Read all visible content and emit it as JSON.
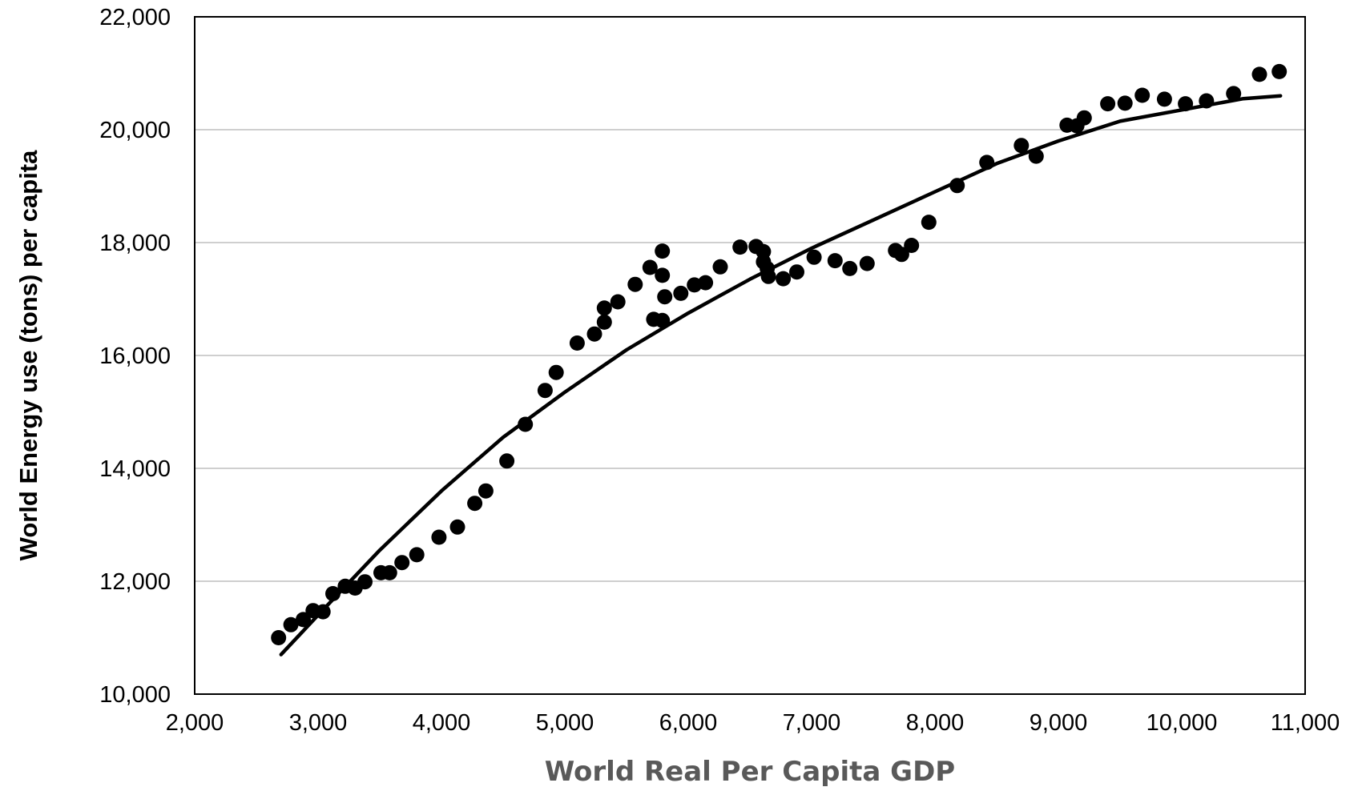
{
  "chart_data": {
    "type": "scatter",
    "title": "",
    "xlabel": "World Real Per Capita GDP",
    "ylabel": "World Energy use (tons) per capita",
    "xlim": [
      2000,
      11000
    ],
    "ylim": [
      10000,
      22000
    ],
    "x_ticks": [
      "2,000",
      "3,000",
      "4,000",
      "5,000",
      "6,000",
      "7,000",
      "8,000",
      "9,000",
      "10,000",
      "11,000"
    ],
    "y_ticks": [
      "10,000",
      "12,000",
      "14,000",
      "16,000",
      "18,000",
      "20,000",
      "22,000"
    ],
    "grid": "horizontal",
    "legend": "none",
    "colors": {
      "points": "#000000",
      "trend": "#000000",
      "grid": "#bfbfbf",
      "x_title": "#595959"
    },
    "series": [
      {
        "kind": "scatter",
        "points": [
          [
            2680,
            11000
          ],
          [
            2780,
            11230
          ],
          [
            2880,
            11320
          ],
          [
            2960,
            11480
          ],
          [
            3040,
            11460
          ],
          [
            3120,
            11780
          ],
          [
            3220,
            11910
          ],
          [
            3300,
            11880
          ],
          [
            3380,
            11990
          ],
          [
            3510,
            12150
          ],
          [
            3580,
            12150
          ],
          [
            3680,
            12330
          ],
          [
            3800,
            12470
          ],
          [
            3980,
            12780
          ],
          [
            4130,
            12960
          ],
          [
            4270,
            13380
          ],
          [
            4360,
            13600
          ],
          [
            4530,
            14130
          ],
          [
            4680,
            14780
          ],
          [
            4840,
            15380
          ],
          [
            4930,
            15700
          ],
          [
            5100,
            16220
          ],
          [
            5240,
            16380
          ],
          [
            5320,
            16590
          ],
          [
            5320,
            16840
          ],
          [
            5430,
            16950
          ],
          [
            5570,
            17260
          ],
          [
            5690,
            17560
          ],
          [
            5720,
            16640
          ],
          [
            5790,
            16620
          ],
          [
            5790,
            17420
          ],
          [
            5790,
            17850
          ],
          [
            5810,
            17040
          ],
          [
            5940,
            17100
          ],
          [
            6050,
            17250
          ],
          [
            6140,
            17290
          ],
          [
            6260,
            17570
          ],
          [
            6420,
            17920
          ],
          [
            6550,
            17930
          ],
          [
            6610,
            17840
          ],
          [
            6610,
            17660
          ],
          [
            6640,
            17540
          ],
          [
            6650,
            17400
          ],
          [
            6770,
            17360
          ],
          [
            6880,
            17480
          ],
          [
            7020,
            17740
          ],
          [
            7190,
            17680
          ],
          [
            7310,
            17540
          ],
          [
            7450,
            17630
          ],
          [
            7680,
            17860
          ],
          [
            7730,
            17790
          ],
          [
            7810,
            17950
          ],
          [
            7950,
            18360
          ],
          [
            8180,
            19010
          ],
          [
            8420,
            19420
          ],
          [
            8700,
            19720
          ],
          [
            8820,
            19530
          ],
          [
            9070,
            20080
          ],
          [
            9150,
            20070
          ],
          [
            9210,
            20210
          ],
          [
            9400,
            20460
          ],
          [
            9540,
            20470
          ],
          [
            9680,
            20610
          ],
          [
            9860,
            20540
          ],
          [
            10030,
            20460
          ],
          [
            10200,
            20510
          ],
          [
            10420,
            20640
          ],
          [
            10630,
            20980
          ],
          [
            10790,
            21030
          ]
        ]
      },
      {
        "kind": "trendline",
        "points": [
          [
            2700,
            10700
          ],
          [
            3000,
            11400
          ],
          [
            3500,
            12550
          ],
          [
            4000,
            13600
          ],
          [
            4500,
            14550
          ],
          [
            5000,
            15350
          ],
          [
            5500,
            16100
          ],
          [
            6000,
            16750
          ],
          [
            6500,
            17350
          ],
          [
            7000,
            17900
          ],
          [
            7500,
            18400
          ],
          [
            8000,
            18900
          ],
          [
            8500,
            19400
          ],
          [
            9000,
            19800
          ],
          [
            9500,
            20150
          ],
          [
            10000,
            20350
          ],
          [
            10500,
            20550
          ],
          [
            10800,
            20600
          ]
        ]
      }
    ]
  }
}
